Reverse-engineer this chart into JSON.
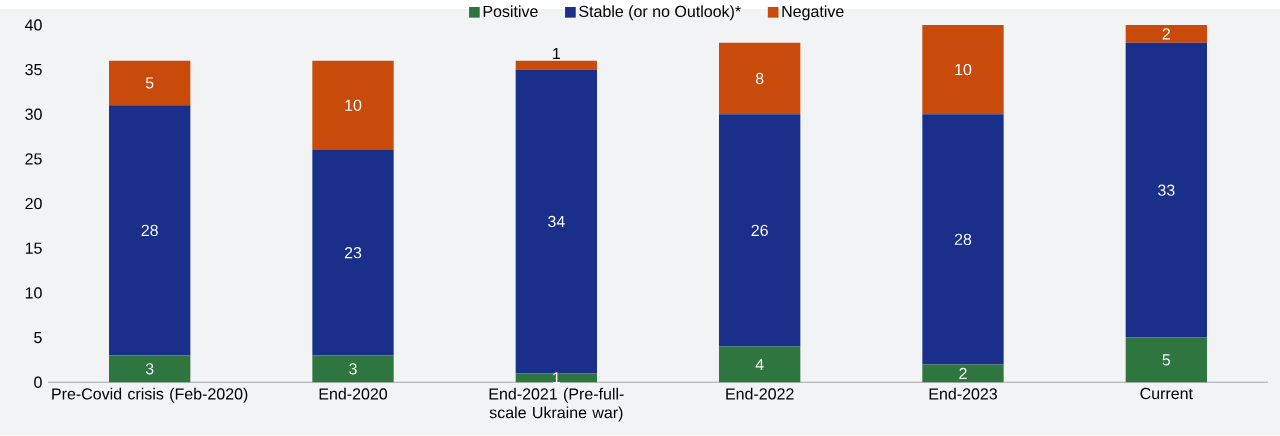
{
  "chart_data": {
    "type": "bar",
    "stacked": true,
    "categories": [
      "Pre-Covid crisis (Feb-2020)",
      "End-2020",
      "End-2021 (Pre-full-scale Ukraine war)",
      "End-2022",
      "End-2023",
      "Current"
    ],
    "series": [
      {
        "name": "Positive",
        "color": "#2e7540",
        "values": [
          3,
          3,
          1,
          4,
          2,
          5
        ]
      },
      {
        "name": "Stable (or no Outlook)*",
        "color": "#1a2f8a",
        "values": [
          28,
          23,
          34,
          26,
          28,
          33
        ]
      },
      {
        "name": "Negative",
        "color": "#c84b0c",
        "values": [
          5,
          10,
          1,
          8,
          10,
          2
        ]
      }
    ],
    "ylim": [
      0,
      40
    ],
    "yticks": [
      0,
      5,
      10,
      15,
      20,
      25,
      30,
      35,
      40
    ],
    "data_labels": true,
    "legend": "top",
    "grid": false
  }
}
